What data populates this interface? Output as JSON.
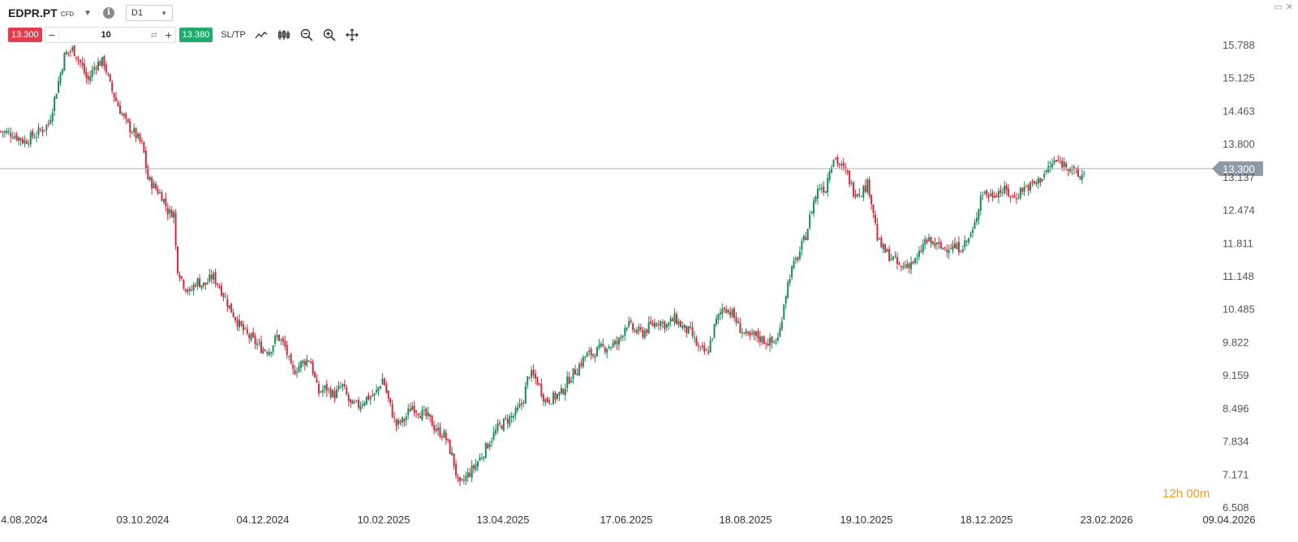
{
  "header": {
    "symbol": "EDPR.PT",
    "instrument_type": "CFD",
    "timeframe": "D1",
    "sell_price": "13.300",
    "buy_price": "13.380",
    "quantity": "10",
    "sltp_label": "SL/TP"
  },
  "icons": [
    "chevron-down-icon",
    "info-icon",
    "line-chart-icon",
    "candles-icon",
    "zoom-out-icon",
    "zoom-in-icon",
    "move-icon",
    "minimize-icon",
    "close-icon",
    "swap-icon"
  ],
  "colors": {
    "up": "#1b8a5a",
    "down": "#d4283b",
    "current_price_label": "#8e9aa6",
    "timer": "#f39a1e"
  },
  "timer": {
    "hours": "12",
    "h": "h",
    "minutes": "00",
    "m": "m"
  },
  "chart_data": {
    "type": "candlestick",
    "y_ticks": [
      "15.788",
      "15.125",
      "14.463",
      "13.800",
      "13.137",
      "12.474",
      "11.811",
      "11.148",
      "10.485",
      "9.822",
      "9.159",
      "8.496",
      "7.834",
      "7.171",
      "6.508"
    ],
    "x_ticks": [
      "4.08.2024",
      "03.10.2024",
      "04.12.2024",
      "10.02.2025",
      "13.04.2025",
      "17.06.2025",
      "18.08.2025",
      "19.10.2025",
      "18.12.2025",
      "23.02.2026",
      "09.04.2026"
    ],
    "ylim": [
      6.508,
      15.788
    ],
    "current_price": 13.3,
    "current_price_label": "13.300",
    "close_path": [
      [
        0,
        14.05
      ],
      [
        15,
        14.0
      ],
      [
        30,
        13.85
      ],
      [
        45,
        14.0
      ],
      [
        60,
        14.2
      ],
      [
        70,
        14.9
      ],
      [
        80,
        15.6
      ],
      [
        90,
        15.7
      ],
      [
        100,
        15.4
      ],
      [
        108,
        15.05
      ],
      [
        118,
        15.4
      ],
      [
        128,
        15.45
      ],
      [
        136,
        14.95
      ],
      [
        146,
        14.55
      ],
      [
        156,
        14.2
      ],
      [
        166,
        14.0
      ],
      [
        176,
        13.75
      ],
      [
        182,
        13.1
      ],
      [
        192,
        12.9
      ],
      [
        200,
        12.75
      ],
      [
        208,
        12.4
      ],
      [
        214,
        12.45
      ],
      [
        218,
        11.35
      ],
      [
        226,
        11.0
      ],
      [
        234,
        10.8
      ],
      [
        242,
        11.05
      ],
      [
        252,
        10.95
      ],
      [
        262,
        11.15
      ],
      [
        272,
        10.9
      ],
      [
        282,
        10.55
      ],
      [
        292,
        10.25
      ],
      [
        302,
        10.0
      ],
      [
        312,
        9.85
      ],
      [
        322,
        9.7
      ],
      [
        332,
        9.65
      ],
      [
        342,
        9.95
      ],
      [
        352,
        9.7
      ],
      [
        360,
        9.2
      ],
      [
        372,
        9.4
      ],
      [
        382,
        9.5
      ],
      [
        392,
        8.8
      ],
      [
        402,
        8.9
      ],
      [
        412,
        8.75
      ],
      [
        422,
        8.95
      ],
      [
        432,
        8.55
      ],
      [
        442,
        8.55
      ],
      [
        452,
        8.7
      ],
      [
        462,
        8.75
      ],
      [
        472,
        9.1
      ],
      [
        478,
        8.7
      ],
      [
        488,
        8.15
      ],
      [
        498,
        8.25
      ],
      [
        508,
        8.55
      ],
      [
        518,
        8.4
      ],
      [
        528,
        8.3
      ],
      [
        538,
        8.05
      ],
      [
        548,
        7.95
      ],
      [
        558,
        7.5
      ],
      [
        566,
        6.9
      ],
      [
        574,
        7.1
      ],
      [
        584,
        7.3
      ],
      [
        594,
        7.55
      ],
      [
        604,
        7.85
      ],
      [
        614,
        8.1
      ],
      [
        624,
        8.25
      ],
      [
        634,
        8.35
      ],
      [
        644,
        8.6
      ],
      [
        652,
        9.2
      ],
      [
        662,
        9.05
      ],
      [
        672,
        8.65
      ],
      [
        682,
        8.7
      ],
      [
        692,
        8.8
      ],
      [
        702,
        9.1
      ],
      [
        712,
        9.3
      ],
      [
        722,
        9.55
      ],
      [
        732,
        9.6
      ],
      [
        742,
        9.7
      ],
      [
        752,
        9.75
      ],
      [
        762,
        9.8
      ],
      [
        772,
        10.2
      ],
      [
        782,
        10.05
      ],
      [
        792,
        10.0
      ],
      [
        802,
        10.15
      ],
      [
        812,
        10.25
      ],
      [
        822,
        10.15
      ],
      [
        832,
        10.3
      ],
      [
        842,
        10.1
      ],
      [
        852,
        10.0
      ],
      [
        862,
        9.65
      ],
      [
        872,
        9.6
      ],
      [
        882,
        10.2
      ],
      [
        892,
        10.55
      ],
      [
        902,
        10.4
      ],
      [
        912,
        10.1
      ],
      [
        922,
        9.9
      ],
      [
        932,
        9.95
      ],
      [
        942,
        9.85
      ],
      [
        952,
        9.8
      ],
      [
        960,
        9.9
      ],
      [
        966,
        10.6
      ],
      [
        974,
        11.2
      ],
      [
        984,
        11.55
      ],
      [
        994,
        12.0
      ],
      [
        1002,
        12.6
      ],
      [
        1010,
        12.95
      ],
      [
        1018,
        12.9
      ],
      [
        1022,
        13.3
      ],
      [
        1028,
        13.55
      ],
      [
        1036,
        13.35
      ],
      [
        1044,
        13.2
      ],
      [
        1052,
        12.85
      ],
      [
        1062,
        12.85
      ],
      [
        1070,
        13.0
      ],
      [
        1076,
        12.5
      ],
      [
        1082,
        11.85
      ],
      [
        1090,
        11.65
      ],
      [
        1100,
        11.5
      ],
      [
        1110,
        11.3
      ],
      [
        1120,
        11.4
      ],
      [
        1130,
        11.45
      ],
      [
        1140,
        11.85
      ],
      [
        1150,
        11.8
      ],
      [
        1160,
        11.7
      ],
      [
        1170,
        11.75
      ],
      [
        1180,
        11.7
      ],
      [
        1190,
        11.8
      ],
      [
        1200,
        12.05
      ],
      [
        1210,
        12.85
      ],
      [
        1220,
        12.75
      ],
      [
        1230,
        12.85
      ],
      [
        1240,
        12.85
      ],
      [
        1250,
        12.7
      ],
      [
        1260,
        12.9
      ],
      [
        1270,
        12.95
      ],
      [
        1280,
        13.05
      ],
      [
        1290,
        13.25
      ],
      [
        1300,
        13.45
      ],
      [
        1310,
        13.4
      ],
      [
        1320,
        13.35
      ],
      [
        1330,
        13.1
      ],
      [
        1338,
        13.25
      ]
    ]
  }
}
